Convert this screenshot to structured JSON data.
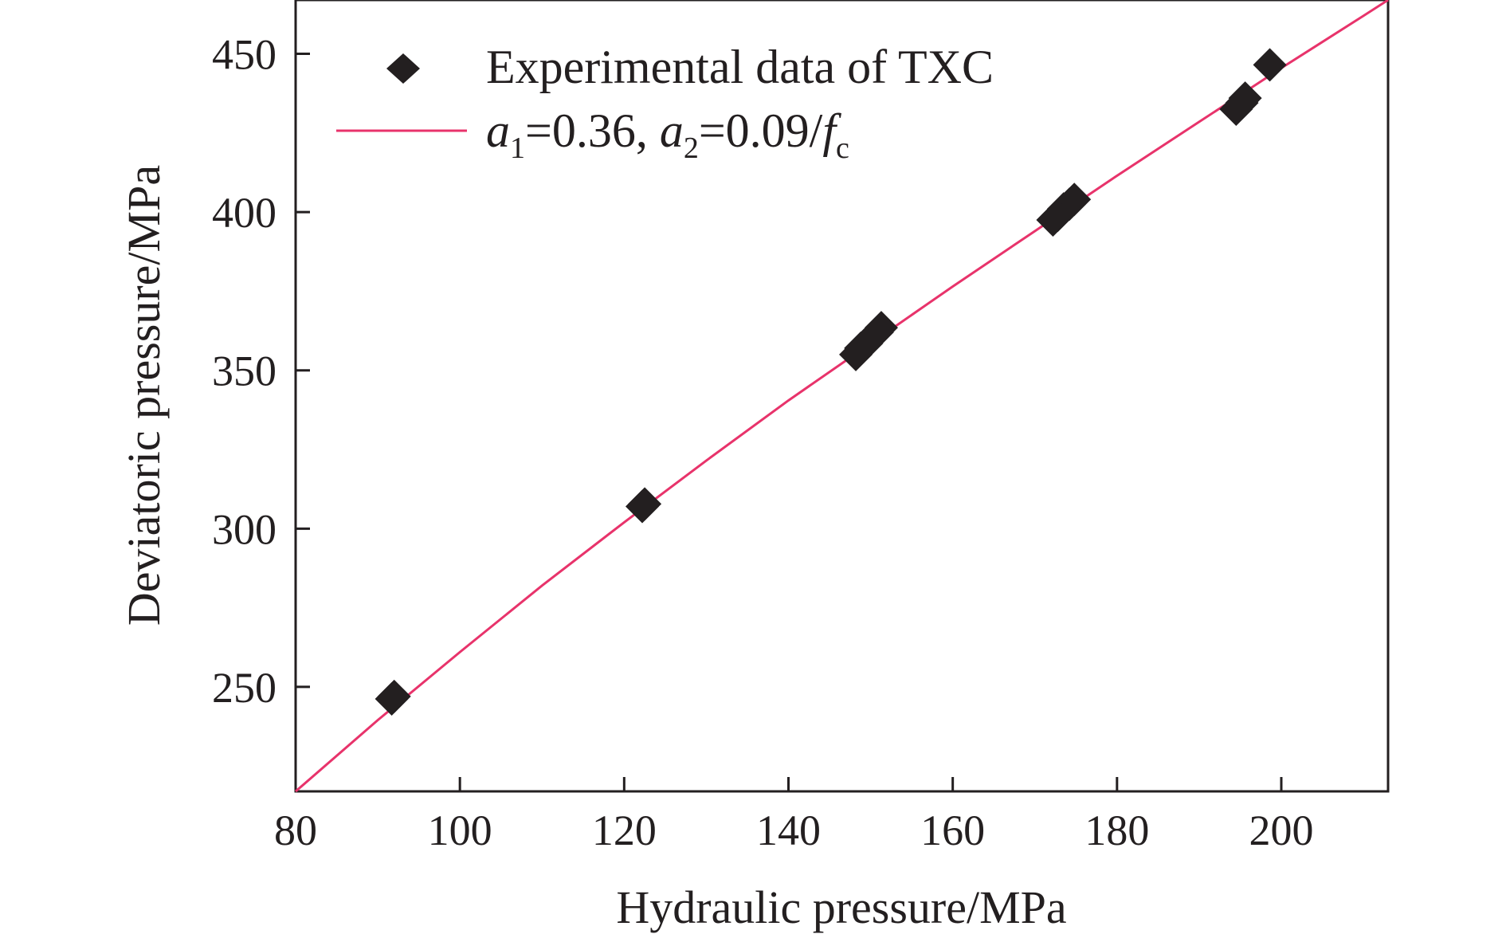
{
  "chart_data": {
    "type": "scatter",
    "xlabel": "Hydraulic pressure/MPa",
    "ylabel": "Deviatoric pressure/MPa",
    "xlim": [
      80,
      213
    ],
    "ylim": [
      217,
      467
    ],
    "xticks": [
      80,
      100,
      120,
      140,
      160,
      180,
      200
    ],
    "yticks": [
      250,
      300,
      350,
      400,
      450
    ],
    "grid": false,
    "legend_position": "top-left",
    "series": [
      {
        "name": "Experimental data of TXC",
        "kind": "scatter",
        "marker": "diamond",
        "color": "#231f20",
        "x": [
          91.7,
          92.0,
          122.2,
          122.5,
          148.2,
          148.8,
          149.5,
          150.2,
          150.8,
          151.3,
          172.2,
          172.8,
          173.5,
          174.2,
          174.8,
          194.5,
          195.2,
          195.6,
          198.6
        ],
        "y": [
          246.2,
          247.0,
          307.0,
          307.8,
          355.0,
          357.0,
          358.5,
          360.5,
          362.0,
          363.5,
          397.5,
          399.0,
          401.0,
          402.5,
          404.0,
          432.5,
          434.5,
          436.0,
          446.5
        ]
      },
      {
        "name_parts": {
          "a1_var": "a",
          "a1_sub": "1",
          "a1_val": "=0.36, ",
          "a2_var": "a",
          "a2_sub": "2",
          "a2_val": "=0.09/",
          "fc_var": "f",
          "fc_sub": "c"
        },
        "kind": "line",
        "color": "#e8336b",
        "x": [
          80,
          90,
          100,
          110,
          120,
          130,
          140,
          150,
          160,
          170,
          180,
          190,
          200,
          210,
          213
        ],
        "y": [
          217,
          239.5,
          261,
          282,
          302,
          321.5,
          340.5,
          358.5,
          376.5,
          394,
          411.5,
          428.5,
          445.5,
          462,
          467
        ]
      }
    ]
  }
}
